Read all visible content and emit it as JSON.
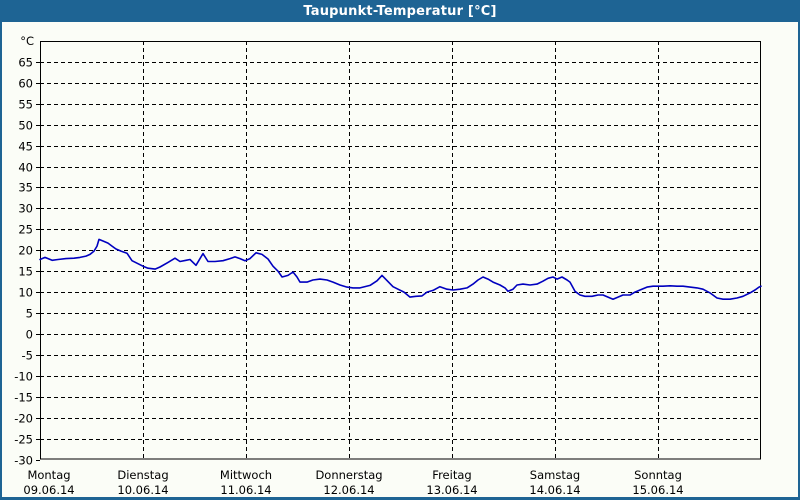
{
  "window_title": "Taupunkt-Temperatur [°C]",
  "chart_data": {
    "type": "line",
    "title": "Taupunkt-Temperatur [°C]",
    "y_unit": "°C",
    "ylabel": "",
    "xlabel": "",
    "ylim": [
      -30,
      70
    ],
    "y_tick_step": 5,
    "y_ticks": [
      65,
      60,
      55,
      50,
      45,
      40,
      35,
      30,
      25,
      20,
      15,
      10,
      5,
      0,
      -5,
      -10,
      -15,
      -20,
      -25,
      -30
    ],
    "grid": "dashed",
    "legend": "none",
    "x_days": [
      {
        "label": "Montag",
        "date": "09.06.14"
      },
      {
        "label": "Dienstag",
        "date": "10.06.14"
      },
      {
        "label": "Mittwoch",
        "date": "11.06.14"
      },
      {
        "label": "Donnerstag",
        "date": "12.06.14"
      },
      {
        "label": "Freitag",
        "date": "13.06.14"
      },
      {
        "label": "Samstag",
        "date": "14.06.14"
      },
      {
        "label": "Sonntag",
        "date": "15.06.14"
      }
    ],
    "series": [
      {
        "name": "Taupunkt-Temperatur",
        "color": "#0000bf",
        "points": [
          [
            0.0,
            17.8
          ],
          [
            0.049,
            18.3
          ],
          [
            0.117,
            17.6
          ],
          [
            0.175,
            17.8
          ],
          [
            0.252,
            18.0
          ],
          [
            0.33,
            18.1
          ],
          [
            0.388,
            18.3
          ],
          [
            0.447,
            18.6
          ],
          [
            0.485,
            19.0
          ],
          [
            0.524,
            19.8
          ],
          [
            0.553,
            21.0
          ],
          [
            0.573,
            22.6
          ],
          [
            0.612,
            22.2
          ],
          [
            0.66,
            21.7
          ],
          [
            0.699,
            21.0
          ],
          [
            0.738,
            20.3
          ],
          [
            0.786,
            19.8
          ],
          [
            0.845,
            19.3
          ],
          [
            0.893,
            17.5
          ],
          [
            0.942,
            16.9
          ],
          [
            1.0,
            16.2
          ],
          [
            1.049,
            15.7
          ],
          [
            1.117,
            15.5
          ],
          [
            1.165,
            16.0
          ],
          [
            1.243,
            17.1
          ],
          [
            1.311,
            18.1
          ],
          [
            1.359,
            17.3
          ],
          [
            1.417,
            17.6
          ],
          [
            1.456,
            17.8
          ],
          [
            1.515,
            16.4
          ],
          [
            1.583,
            19.2
          ],
          [
            1.631,
            17.3
          ],
          [
            1.699,
            17.3
          ],
          [
            1.777,
            17.5
          ],
          [
            1.845,
            18.0
          ],
          [
            1.893,
            18.4
          ],
          [
            1.942,
            18.0
          ],
          [
            1.99,
            17.5
          ],
          [
            2.039,
            18.0
          ],
          [
            2.097,
            19.4
          ],
          [
            2.155,
            19.0
          ],
          [
            2.214,
            17.9
          ],
          [
            2.262,
            16.2
          ],
          [
            2.311,
            15.0
          ],
          [
            2.35,
            13.6
          ],
          [
            2.408,
            14.0
          ],
          [
            2.456,
            14.8
          ],
          [
            2.495,
            13.6
          ],
          [
            2.524,
            12.4
          ],
          [
            2.592,
            12.4
          ],
          [
            2.65,
            12.9
          ],
          [
            2.718,
            13.1
          ],
          [
            2.786,
            12.9
          ],
          [
            2.845,
            12.4
          ],
          [
            2.913,
            11.7
          ],
          [
            2.981,
            11.2
          ],
          [
            3.039,
            11.0
          ],
          [
            3.107,
            11.0
          ],
          [
            3.204,
            11.6
          ],
          [
            3.272,
            12.7
          ],
          [
            3.32,
            14.0
          ],
          [
            3.379,
            12.5
          ],
          [
            3.427,
            11.3
          ],
          [
            3.476,
            10.7
          ],
          [
            3.534,
            10.0
          ],
          [
            3.592,
            8.8
          ],
          [
            3.65,
            9.0
          ],
          [
            3.709,
            9.1
          ],
          [
            3.757,
            10.0
          ],
          [
            3.816,
            10.4
          ],
          [
            3.883,
            11.3
          ],
          [
            3.951,
            10.7
          ],
          [
            4.01,
            10.5
          ],
          [
            4.078,
            10.7
          ],
          [
            4.146,
            11.0
          ],
          [
            4.204,
            11.9
          ],
          [
            4.252,
            12.9
          ],
          [
            4.301,
            13.6
          ],
          [
            4.35,
            13.1
          ],
          [
            4.398,
            12.4
          ],
          [
            4.466,
            11.7
          ],
          [
            4.515,
            11.0
          ],
          [
            4.544,
            10.2
          ],
          [
            4.592,
            10.7
          ],
          [
            4.631,
            11.7
          ],
          [
            4.689,
            11.9
          ],
          [
            4.757,
            11.7
          ],
          [
            4.825,
            11.9
          ],
          [
            4.883,
            12.6
          ],
          [
            4.932,
            13.3
          ],
          [
            4.981,
            13.6
          ],
          [
            5.019,
            13.1
          ],
          [
            5.068,
            13.6
          ],
          [
            5.117,
            12.9
          ],
          [
            5.146,
            12.4
          ],
          [
            5.194,
            10.2
          ],
          [
            5.243,
            9.3
          ],
          [
            5.291,
            9.0
          ],
          [
            5.359,
            9.0
          ],
          [
            5.417,
            9.3
          ],
          [
            5.466,
            9.3
          ],
          [
            5.515,
            8.8
          ],
          [
            5.563,
            8.3
          ],
          [
            5.612,
            8.8
          ],
          [
            5.66,
            9.3
          ],
          [
            5.728,
            9.3
          ],
          [
            5.777,
            10.0
          ],
          [
            5.825,
            10.5
          ],
          [
            5.893,
            11.2
          ],
          [
            5.951,
            11.4
          ],
          [
            5.99,
            11.4
          ],
          [
            6.049,
            11.4
          ],
          [
            6.117,
            11.5
          ],
          [
            6.184,
            11.4
          ],
          [
            6.243,
            11.4
          ],
          [
            6.311,
            11.2
          ],
          [
            6.379,
            11.0
          ],
          [
            6.437,
            10.7
          ],
          [
            6.505,
            9.8
          ],
          [
            6.573,
            8.6
          ],
          [
            6.631,
            8.3
          ],
          [
            6.699,
            8.3
          ],
          [
            6.767,
            8.6
          ],
          [
            6.825,
            9.0
          ],
          [
            6.893,
            9.8
          ],
          [
            6.942,
            10.5
          ],
          [
            6.981,
            11.2
          ],
          [
            7.0,
            11.4
          ]
        ]
      }
    ],
    "colors": {
      "titlebar": "#1e6494",
      "background": "#fbfdf7",
      "frame": "#000000",
      "grid": "#000000",
      "line": "#0000bf"
    }
  }
}
